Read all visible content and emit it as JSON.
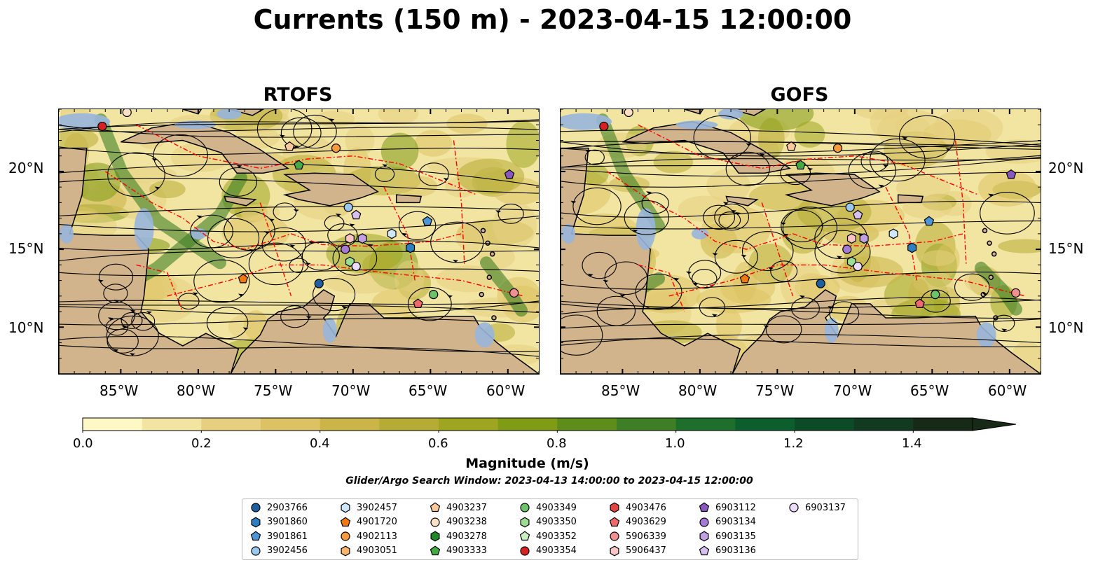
{
  "title": "Currents (150 m) - 2023-04-15 12:00:00",
  "panels": [
    {
      "title": "RTOFS"
    },
    {
      "title": "GOFS"
    }
  ],
  "axes": {
    "lon_ticks": [
      "85°W",
      "80°W",
      "75°W",
      "70°W",
      "65°W",
      "60°W"
    ],
    "lat_ticks": [
      "20°N",
      "15°N",
      "10°N"
    ]
  },
  "colorbar": {
    "label": "Magnitude (m/s)",
    "ticks": [
      "0.0",
      "0.2",
      "0.4",
      "0.6",
      "0.8",
      "1.0",
      "1.2",
      "1.4"
    ],
    "range": [
      0,
      1.5
    ],
    "colors": [
      "#fdf8c4",
      "#f2e5a2",
      "#e6d07f",
      "#dcc262",
      "#cbb548",
      "#b6ab34",
      "#9ea621",
      "#809b14",
      "#5e8d1c",
      "#3e7f25",
      "#1f6f2c",
      "#0d5e2d",
      "#0b4c26",
      "#123a20",
      "#172a18"
    ]
  },
  "search_window": "Glider/Argo Search Window: 2023-04-13 14:00:00 to 2023-04-15 12:00:00",
  "legend": [
    {
      "id": "2903766",
      "shape": "circle",
      "color": "#1f5fa0"
    },
    {
      "id": "3901860",
      "shape": "hexagon",
      "color": "#2f7fc0"
    },
    {
      "id": "3901861",
      "shape": "pentagon",
      "color": "#4a96d8"
    },
    {
      "id": "3902456",
      "shape": "circle",
      "color": "#9dc8ee"
    },
    {
      "id": "3902457",
      "shape": "hexagon",
      "color": "#cfe6fb"
    },
    {
      "id": "4901720",
      "shape": "pentagon",
      "color": "#f07a10"
    },
    {
      "id": "4902113",
      "shape": "circle",
      "color": "#f79a3c"
    },
    {
      "id": "4903051",
      "shape": "hexagon",
      "color": "#fbb46e"
    },
    {
      "id": "4903237",
      "shape": "pentagon",
      "color": "#fdc99a"
    },
    {
      "id": "4903238",
      "shape": "circle",
      "color": "#fde0c6"
    },
    {
      "id": "4903278",
      "shape": "hexagon",
      "color": "#1f8a2a"
    },
    {
      "id": "4903333",
      "shape": "pentagon",
      "color": "#44aa44"
    },
    {
      "id": "4903349",
      "shape": "circle",
      "color": "#6cc36b"
    },
    {
      "id": "4903350",
      "shape": "hexagon",
      "color": "#9ddc95"
    },
    {
      "id": "4903352",
      "shape": "pentagon",
      "color": "#c8f0c0"
    },
    {
      "id": "4903354",
      "shape": "circle",
      "color": "#d62222"
    },
    {
      "id": "4903476",
      "shape": "hexagon",
      "color": "#e24444"
    },
    {
      "id": "4903629",
      "shape": "pentagon",
      "color": "#ee6a6a"
    },
    {
      "id": "5906339",
      "shape": "circle",
      "color": "#f29090"
    },
    {
      "id": "5906437",
      "shape": "hexagon",
      "color": "#f8c4c4"
    },
    {
      "id": "6903112",
      "shape": "pentagon",
      "color": "#8858c0"
    },
    {
      "id": "6903134",
      "shape": "circle",
      "color": "#a47ad4"
    },
    {
      "id": "6903135",
      "shape": "hexagon",
      "color": "#c1a1e4"
    },
    {
      "id": "6903136",
      "shape": "pentagon",
      "color": "#d5c0ef"
    },
    {
      "id": "6903137",
      "shape": "circle",
      "color": "#ecdcfb"
    }
  ],
  "map_colors": {
    "land": "#d2b48c",
    "shallow_water": "#98b5dc",
    "coastline": "#000000",
    "eez": "#ff0000",
    "streamlines": "#000000"
  },
  "map_extent": {
    "lon": [
      -89.0,
      -58.0
    ],
    "lat": [
      7.0,
      24.0
    ]
  },
  "floats": [
    {
      "id": "4903354",
      "lon": -86.2,
      "lat": 22.9
    },
    {
      "id": "4903238",
      "lon": -84.6,
      "lat": 23.8
    },
    {
      "id": "4903237",
      "lon": -74.1,
      "lat": 21.6
    },
    {
      "id": "4902113",
      "lon": -71.1,
      "lat": 21.5
    },
    {
      "id": "4903333",
      "lon": -73.5,
      "lat": 20.4
    },
    {
      "id": "6903112",
      "lon": -59.9,
      "lat": 19.8
    },
    {
      "id": "3902456",
      "lon": -70.3,
      "lat": 17.7
    },
    {
      "id": "6903136",
      "lon": -69.8,
      "lat": 17.2
    },
    {
      "id": "3902457",
      "lon": -67.5,
      "lat": 16.0
    },
    {
      "id": "3901861",
      "lon": -65.2,
      "lat": 16.8
    },
    {
      "id": "5906437",
      "lon": -70.2,
      "lat": 15.7
    },
    {
      "id": "6903135",
      "lon": -69.4,
      "lat": 15.7
    },
    {
      "id": "3901860",
      "lon": -66.3,
      "lat": 15.1
    },
    {
      "id": "6903134",
      "lon": -70.5,
      "lat": 15.0
    },
    {
      "id": "4903350",
      "lon": -70.2,
      "lat": 14.2
    },
    {
      "id": "6903137",
      "lon": -69.8,
      "lat": 13.9
    },
    {
      "id": "4901720",
      "lon": -77.1,
      "lat": 13.1
    },
    {
      "id": "2903766",
      "lon": -72.2,
      "lat": 12.8
    },
    {
      "id": "4903349",
      "lon": -64.8,
      "lat": 12.1
    },
    {
      "id": "4903629",
      "lon": -65.8,
      "lat": 11.5
    },
    {
      "id": "5906339",
      "lon": -59.6,
      "lat": 12.2
    }
  ]
}
